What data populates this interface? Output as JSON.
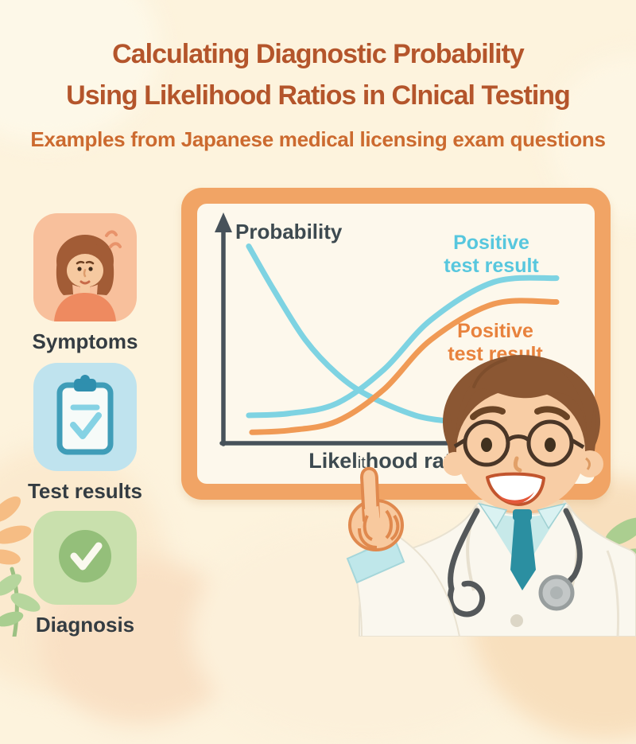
{
  "palette": {
    "page_bg": "#fdf3dd",
    "title_color": "#b4552b",
    "subtitle_color": "#cc6a2f",
    "label_color": "#343c42",
    "axis_color": "#47525a",
    "chart_text_color": "#3d4a50",
    "blue_curve": "#7ed3e2",
    "blue_label": "#57c7de",
    "orange_curve": "#f09a55",
    "orange_label": "#e8823d",
    "board_frame": "#f1a465",
    "board_panel": "#fdf8ec"
  },
  "header": {
    "title_line1": "Calculating Diagnostic Probability",
    "title_line2": "Using Likelihood Ratios in Clnical Testing",
    "subtitle": "Examples from Japanese medical licensing exam questions"
  },
  "sidebar": {
    "items": [
      {
        "label": "Symptoms",
        "icon": "patient-girl-icon",
        "bg": "#f8c09c"
      },
      {
        "label": "Test results",
        "icon": "clipboard-check-icon",
        "bg": "#bfe3ee"
      },
      {
        "label": "Diagnosis",
        "icon": "check-circle-icon",
        "bg": "#c9e0ad"
      }
    ]
  },
  "chart_data": {
    "type": "line",
    "title": "",
    "xlabel": "Likelithood ratio",
    "xlabel_parts": [
      "Likel",
      "it",
      "hood ratio"
    ],
    "ylabel": "Probability",
    "x_axis": {
      "range": [
        0,
        10
      ],
      "ticks": [],
      "grid": false
    },
    "y_axis": {
      "range": [
        0,
        1
      ],
      "ticks": [],
      "grid": false
    },
    "legend_position": "inline-labels",
    "series": [
      {
        "name": "Positive test result",
        "label_lines": [
          "Positive",
          "test result"
        ],
        "color": "#7ed3e2",
        "trend": "sigmoid-increasing",
        "x": [
          0.2,
          1.5,
          3,
          4.5,
          6,
          8,
          10
        ],
        "y": [
          0.12,
          0.13,
          0.18,
          0.35,
          0.6,
          0.79,
          0.81
        ]
      },
      {
        "name": "Positive test result",
        "label_lines": [
          "Positive",
          "test result"
        ],
        "color": "#f09a55",
        "trend": "sigmoid-increasing",
        "x": [
          0.3,
          1.5,
          3,
          4.5,
          6,
          8,
          10
        ],
        "y": [
          0.035,
          0.045,
          0.09,
          0.25,
          0.5,
          0.68,
          0.69
        ]
      },
      {
        "name": "",
        "label_lines": [],
        "color": "#7ed3e2",
        "trend": "decreasing",
        "x": [
          0.2,
          1,
          2,
          3,
          4,
          5.5,
          6.6
        ],
        "y": [
          0.97,
          0.75,
          0.5,
          0.33,
          0.22,
          0.12,
          0.09
        ]
      }
    ]
  }
}
